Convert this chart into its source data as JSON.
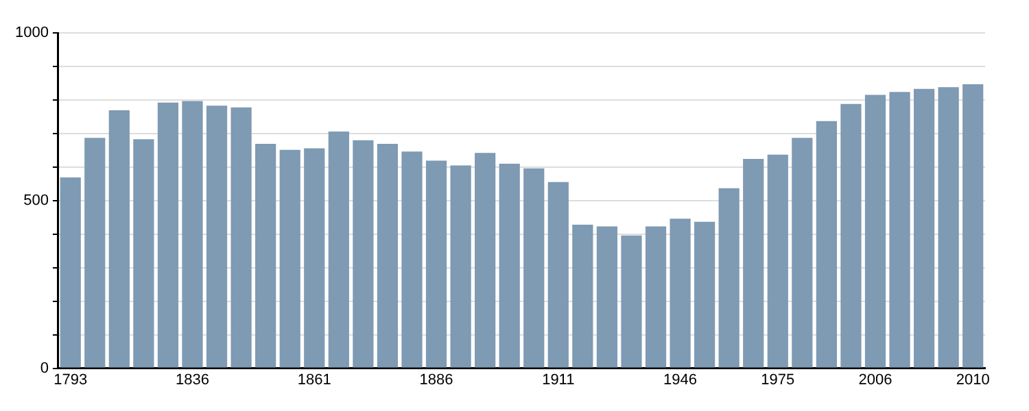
{
  "chart_data": {
    "type": "bar",
    "categories": [
      "1793",
      null,
      null,
      null,
      null,
      "1836",
      null,
      null,
      null,
      null,
      "1861",
      null,
      null,
      null,
      null,
      "1886",
      null,
      null,
      null,
      null,
      "1911",
      null,
      null,
      null,
      null,
      "1946",
      null,
      null,
      null,
      "1975",
      null,
      null,
      null,
      "2006",
      null,
      null,
      null,
      "2010"
    ],
    "values": [
      569,
      687,
      769,
      683,
      792,
      797,
      783,
      778,
      669,
      651,
      656,
      706,
      680,
      669,
      646,
      619,
      605,
      642,
      610,
      596,
      555,
      428,
      423,
      396,
      423,
      446,
      437,
      537,
      624,
      637,
      687,
      737,
      788,
      815,
      824,
      833,
      838,
      847
    ],
    "color": "#7f9ab3",
    "ylim": [
      0,
      1000
    ],
    "yticks": [
      0,
      {
        "value": 100,
        "label": null
      },
      {
        "value": 200,
        "label": null
      },
      {
        "value": 300,
        "label": null
      },
      {
        "value": 400,
        "label": null
      },
      500,
      {
        "value": 600,
        "label": null
      },
      {
        "value": 700,
        "label": null
      },
      {
        "value": 800,
        "label": null
      },
      {
        "value": 900,
        "label": null
      },
      1000
    ],
    "grid": "y",
    "legend": false
  }
}
